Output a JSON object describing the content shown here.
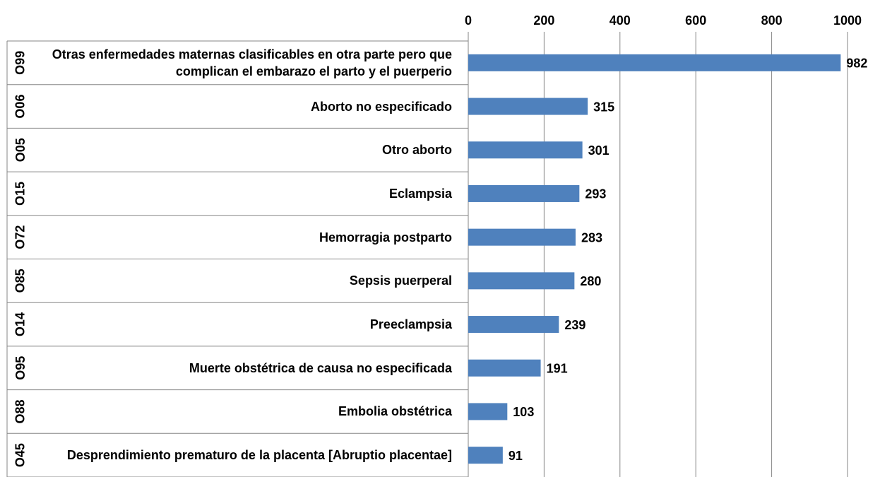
{
  "chart_data": {
    "type": "bar",
    "orientation": "horizontal",
    "groups": [
      "O99",
      "O06",
      "O05",
      "O15",
      "O72",
      "O85",
      "O14",
      "O95",
      "O88",
      "O45"
    ],
    "categories": [
      "Otras enfermedades maternas clasificables en otra parte pero que complican el embarazo el parto y el puerperio",
      "Aborto no especificado",
      "Otro aborto",
      "Eclampsia",
      "Hemorragia postparto",
      "Sepsis puerperal",
      "Preeclampsia",
      "Muerte obstétrica de causa no especificada",
      "Embolia obstétrica",
      "Desprendimiento prematuro de la placenta [Abruptio placentae]"
    ],
    "values": [
      982,
      315,
      301,
      293,
      283,
      280,
      239,
      191,
      103,
      91
    ],
    "color": "#4f81bd",
    "xlim": [
      0,
      1000
    ],
    "xticks": [
      0,
      200,
      400,
      600,
      800,
      1000
    ],
    "grid": true
  }
}
